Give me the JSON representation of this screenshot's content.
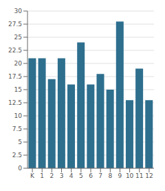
{
  "chart_data": {
    "type": "bar",
    "categories": [
      "K",
      "1",
      "2",
      "3",
      "4",
      "5",
      "6",
      "7",
      "8",
      "9",
      "10",
      "11",
      "12"
    ],
    "values": [
      21,
      21,
      17,
      21,
      16,
      24,
      16,
      18,
      15,
      28,
      13,
      19,
      13
    ],
    "color": "#2e6f8e",
    "ylim": [
      0,
      30
    ],
    "yticks": [
      0,
      2.5,
      5,
      7.5,
      10,
      12.5,
      15,
      17.5,
      20,
      22.5,
      25,
      27.5,
      30
    ],
    "grid": true
  }
}
